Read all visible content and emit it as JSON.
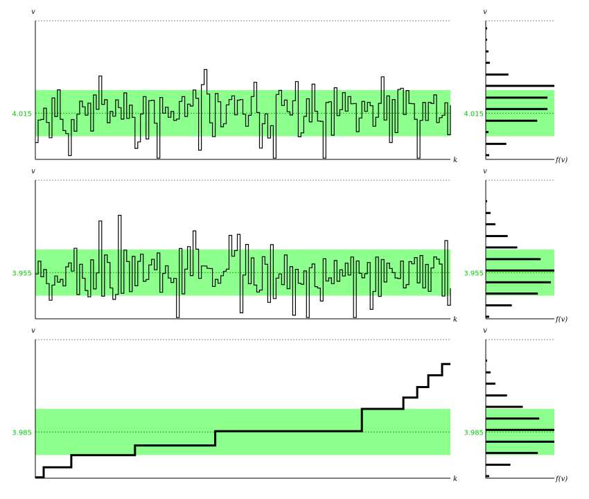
{
  "chart_data": [
    {
      "type": "line",
      "step": true,
      "mean": 4.015,
      "band": [
        4.0095,
        4.0205
      ],
      "ylim": [
        4.004,
        4.037
      ],
      "tick_label": "4.015",
      "xlabel": "k",
      "ylabel": "v",
      "hist_xlabel": "f(v)",
      "hist_ylabel": "v",
      "seed": 11,
      "n": 150,
      "histogram": {
        "bins": [
          4.005,
          4.0077,
          4.0105,
          4.0132,
          4.016,
          4.0187,
          4.0215,
          4.0242,
          4.027,
          4.0297,
          4.0325,
          4.0352
        ],
        "values": [
          0.05,
          0.3,
          0.04,
          0.75,
          0.9,
          0.9,
          1.0,
          0.33,
          0.06,
          0.04,
          0.02,
          0.02
        ]
      }
    },
    {
      "type": "line",
      "step": true,
      "mean": 3.955,
      "band": [
        3.9495,
        3.9605
      ],
      "ylim": [
        3.944,
        3.977
      ],
      "tick_label": "3.955",
      "xlabel": "k",
      "ylabel": "v",
      "hist_xlabel": "f(v)",
      "hist_ylabel": "v",
      "seed": 27,
      "n": 150,
      "histogram": {
        "bins": [
          3.9445,
          3.9472,
          3.95,
          3.9527,
          3.9555,
          3.9582,
          3.961,
          3.9637,
          3.9665,
          3.9692,
          3.972
        ],
        "values": [
          0.05,
          0.38,
          0.76,
          0.95,
          1.0,
          0.8,
          0.46,
          0.32,
          0.14,
          0.07,
          0.02
        ]
      }
    },
    {
      "type": "line",
      "step": true,
      "mean": 3.985,
      "band": [
        3.9795,
        3.9905
      ],
      "ylim": [
        3.974,
        4.007
      ],
      "tick_label": "3.985",
      "xlabel": "k",
      "ylabel": "v",
      "hist_xlabel": "f(v)",
      "hist_ylabel": "v",
      "trace": {
        "x": [
          0,
          3,
          13,
          36,
          65,
          95,
          118,
          133,
          138,
          142,
          147,
          150
        ],
        "y": [
          3.9742,
          3.9766,
          3.9795,
          3.9818,
          3.9852,
          3.9852,
          3.9905,
          3.9932,
          3.9957,
          3.9985,
          4.0012,
          4.0012
        ]
      },
      "histogram": {
        "bins": [
          3.9745,
          3.9772,
          3.98,
          3.9827,
          3.9855,
          3.9882,
          3.991,
          3.9937,
          3.9965,
          3.9992,
          4.002
        ],
        "values": [
          0.05,
          0.36,
          0.76,
          1.0,
          1.0,
          0.78,
          0.54,
          0.31,
          0.14,
          0.07,
          0.02
        ]
      }
    }
  ]
}
